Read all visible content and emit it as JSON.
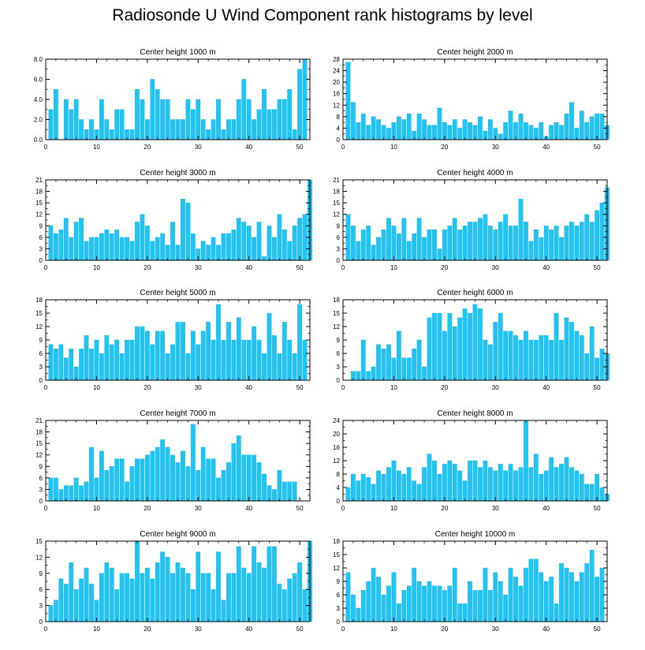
{
  "title": "Radiosonde U Wind Component rank histograms by level",
  "colors": {
    "bar": "#1ec4f4",
    "bar_edge": "#0aa0cc",
    "axis": "#000000"
  },
  "chart_data": [
    {
      "type": "bar",
      "title": "Center height 1000 m",
      "xlim": [
        0,
        52
      ],
      "ylim": [
        0,
        8
      ],
      "yticks": [
        0,
        2,
        4,
        6,
        8
      ],
      "ytick_labels": [
        "0.0",
        "2.0",
        "4.0",
        "6.0",
        "8.0"
      ],
      "xticks": [
        0,
        10,
        20,
        30,
        40,
        50
      ],
      "values": [
        3,
        5,
        0,
        4,
        3,
        4,
        2,
        1,
        2,
        1,
        4,
        2,
        1,
        3,
        3,
        1,
        1,
        5,
        4,
        2,
        6,
        5,
        4,
        4,
        2,
        2,
        2,
        4,
        3,
        4,
        2,
        1,
        2,
        4,
        1,
        2,
        2,
        4,
        6,
        4,
        2,
        3,
        5,
        3,
        3,
        4,
        4,
        5,
        1,
        7,
        8
      ]
    },
    {
      "type": "bar",
      "title": "Center height 2000 m",
      "xlim": [
        0,
        52
      ],
      "ylim": [
        0,
        28
      ],
      "yticks": [
        0,
        4,
        8,
        12,
        16,
        20,
        24,
        28
      ],
      "ytick_labels": [
        "0",
        "4",
        "8",
        "12",
        "16",
        "20",
        "24",
        "28"
      ],
      "xticks": [
        0,
        10,
        20,
        30,
        40,
        50
      ],
      "values": [
        27,
        13,
        6,
        9,
        5,
        8,
        7,
        5,
        4,
        6,
        8,
        7,
        9,
        3,
        9,
        7,
        5,
        5,
        11,
        6,
        5,
        7,
        4,
        7,
        6,
        5,
        8,
        3,
        7,
        4,
        2,
        6,
        10,
        6,
        9,
        6,
        5,
        4,
        6,
        1,
        5,
        6,
        5,
        9,
        13,
        4,
        10,
        6,
        8,
        9,
        9,
        5
      ]
    },
    {
      "type": "bar",
      "title": "Center height 3000 m",
      "xlim": [
        0,
        52
      ],
      "ylim": [
        0,
        21
      ],
      "yticks": [
        0,
        3,
        6,
        9,
        12,
        15,
        18,
        21
      ],
      "ytick_labels": [
        "0",
        "3",
        "6",
        "9",
        "12",
        "15",
        "18",
        "21"
      ],
      "xticks": [
        0,
        10,
        20,
        30,
        40,
        50
      ],
      "values": [
        9,
        7,
        8,
        11,
        6,
        10,
        11,
        5,
        6,
        6,
        7,
        8,
        7,
        8,
        6,
        6,
        5,
        10,
        12,
        9,
        5,
        6,
        7,
        4,
        10,
        4,
        16,
        15,
        7,
        3,
        5,
        4,
        6,
        4,
        7,
        7,
        8,
        11,
        10,
        9,
        6,
        10,
        1,
        9,
        6,
        12,
        8,
        5,
        9,
        11,
        12,
        21
      ]
    },
    {
      "type": "bar",
      "title": "Center height 4000 m",
      "xlim": [
        0,
        52
      ],
      "ylim": [
        0,
        21
      ],
      "yticks": [
        0,
        3,
        6,
        9,
        12,
        15,
        18,
        21
      ],
      "ytick_labels": [
        "0",
        "3",
        "6",
        "9",
        "12",
        "15",
        "18",
        "21"
      ],
      "xticks": [
        0,
        10,
        20,
        30,
        40,
        50
      ],
      "values": [
        12,
        9,
        5,
        8,
        9,
        4,
        6,
        8,
        11,
        9,
        7,
        11,
        5,
        7,
        11,
        6,
        8,
        8,
        3,
        8,
        9,
        11,
        8,
        9,
        10,
        10,
        11,
        12,
        9,
        8,
        10,
        12,
        9,
        9,
        16,
        10,
        5,
        8,
        6,
        9,
        8,
        9,
        6,
        9,
        10,
        9,
        10,
        12,
        10,
        13,
        15,
        19
      ]
    },
    {
      "type": "bar",
      "title": "Center height 5000 m",
      "xlim": [
        0,
        52
      ],
      "ylim": [
        0,
        18
      ],
      "yticks": [
        0,
        3,
        6,
        9,
        12,
        15,
        18
      ],
      "ytick_labels": [
        "0",
        "3",
        "6",
        "9",
        "12",
        "15",
        "18"
      ],
      "xticks": [
        0,
        10,
        20,
        30,
        40,
        50
      ],
      "values": [
        8,
        7,
        8,
        5,
        7,
        3,
        7,
        10,
        7,
        9,
        6,
        10,
        8,
        9,
        6,
        9,
        9,
        12,
        12,
        11,
        8,
        11,
        11,
        6,
        8,
        13,
        13,
        6,
        11,
        8,
        11,
        13,
        9,
        17,
        9,
        13,
        9,
        14,
        9,
        9,
        12,
        9,
        6,
        15,
        10,
        6,
        13,
        9,
        6,
        17,
        9
      ]
    },
    {
      "type": "bar",
      "title": "Center height 6000 m",
      "xlim": [
        0,
        52
      ],
      "ylim": [
        0,
        18
      ],
      "yticks": [
        0,
        3,
        6,
        9,
        12,
        15,
        18
      ],
      "ytick_labels": [
        "0",
        "3",
        "6",
        "9",
        "12",
        "15",
        "18"
      ],
      "xticks": [
        0,
        10,
        20,
        30,
        40,
        50
      ],
      "values": [
        0,
        2,
        2,
        9,
        2,
        3,
        8,
        7,
        8,
        5,
        11,
        5,
        5,
        7,
        9,
        3,
        14,
        15,
        15,
        11,
        15,
        12,
        14,
        16,
        15,
        17,
        16,
        9,
        8,
        13,
        15,
        11,
        11,
        10,
        9,
        11,
        9,
        9,
        10,
        10,
        9,
        15,
        9,
        14,
        13,
        11,
        10,
        6,
        12,
        5,
        7,
        6
      ]
    },
    {
      "type": "bar",
      "title": "Center height 7000 m",
      "xlim": [
        0,
        52
      ],
      "ylim": [
        0,
        21
      ],
      "yticks": [
        0,
        3,
        6,
        9,
        12,
        15,
        18,
        21
      ],
      "ytick_labels": [
        "0",
        "3",
        "6",
        "9",
        "12",
        "15",
        "18",
        "21"
      ],
      "xticks": [
        0,
        10,
        20,
        30,
        40,
        50
      ],
      "values": [
        6,
        6,
        3,
        4,
        4,
        6,
        4,
        5,
        14,
        6,
        13,
        8,
        9,
        11,
        11,
        5,
        9,
        11,
        11,
        12,
        13,
        14,
        16,
        14,
        12,
        10,
        13,
        9,
        20,
        8,
        14,
        11,
        11,
        6,
        8,
        10,
        15,
        17,
        12,
        12,
        12,
        10,
        7,
        4,
        3,
        8,
        5,
        5,
        5
      ]
    },
    {
      "type": "bar",
      "title": "Center height 8000 m",
      "xlim": [
        0,
        52
      ],
      "ylim": [
        0,
        24
      ],
      "yticks": [
        0,
        4,
        8,
        12,
        16,
        20,
        24
      ],
      "ytick_labels": [
        "0",
        "4",
        "8",
        "12",
        "16",
        "20",
        "24"
      ],
      "xticks": [
        0,
        10,
        20,
        30,
        40,
        50
      ],
      "values": [
        4,
        8,
        6,
        8,
        7,
        5,
        9,
        8,
        10,
        12,
        9,
        8,
        10,
        6,
        5,
        10,
        14,
        12,
        8,
        11,
        12,
        11,
        9,
        6,
        12,
        12,
        10,
        12,
        10,
        9,
        11,
        9,
        11,
        9,
        10,
        24,
        10,
        14,
        8,
        9,
        13,
        10,
        11,
        13,
        10,
        9,
        8,
        5,
        5,
        8,
        4,
        2
      ]
    },
    {
      "type": "bar",
      "title": "Center height 9000 m",
      "xlim": [
        0,
        52
      ],
      "ylim": [
        0,
        15
      ],
      "yticks": [
        0,
        3,
        6,
        9,
        12,
        15
      ],
      "ytick_labels": [
        "0",
        "3",
        "6",
        "9",
        "12",
        "15"
      ],
      "xticks": [
        0,
        10,
        20,
        30,
        40,
        50
      ],
      "values": [
        3,
        4,
        8,
        7,
        11,
        6,
        8,
        10,
        7,
        4,
        9,
        11,
        10,
        6,
        9,
        9,
        8,
        15,
        9,
        10,
        8,
        11,
        13,
        12,
        9,
        11,
        10,
        9,
        6,
        13,
        9,
        9,
        6,
        13,
        4,
        9,
        9,
        14,
        10,
        9,
        14,
        11,
        10,
        14,
        14,
        7,
        6,
        8,
        9,
        11,
        6,
        15
      ]
    },
    {
      "type": "bar",
      "title": "Center height 10000 m",
      "xlim": [
        0,
        52
      ],
      "ylim": [
        0,
        18
      ],
      "yticks": [
        0,
        3,
        6,
        9,
        12,
        15,
        18
      ],
      "ytick_labels": [
        "0",
        "3",
        "6",
        "9",
        "12",
        "15",
        "18"
      ],
      "xticks": [
        0,
        10,
        20,
        30,
        40,
        50
      ],
      "values": [
        11,
        6,
        3,
        7,
        9,
        12,
        10,
        6,
        8,
        11,
        4,
        7,
        8,
        12,
        9,
        8,
        9,
        8,
        8,
        7,
        8,
        12,
        4,
        4,
        9,
        7,
        7,
        12,
        7,
        11,
        9,
        6,
        12,
        10,
        8,
        12,
        14,
        14,
        11,
        9,
        10,
        4,
        13,
        12,
        11,
        9,
        11,
        13,
        16,
        10,
        12
      ]
    }
  ]
}
